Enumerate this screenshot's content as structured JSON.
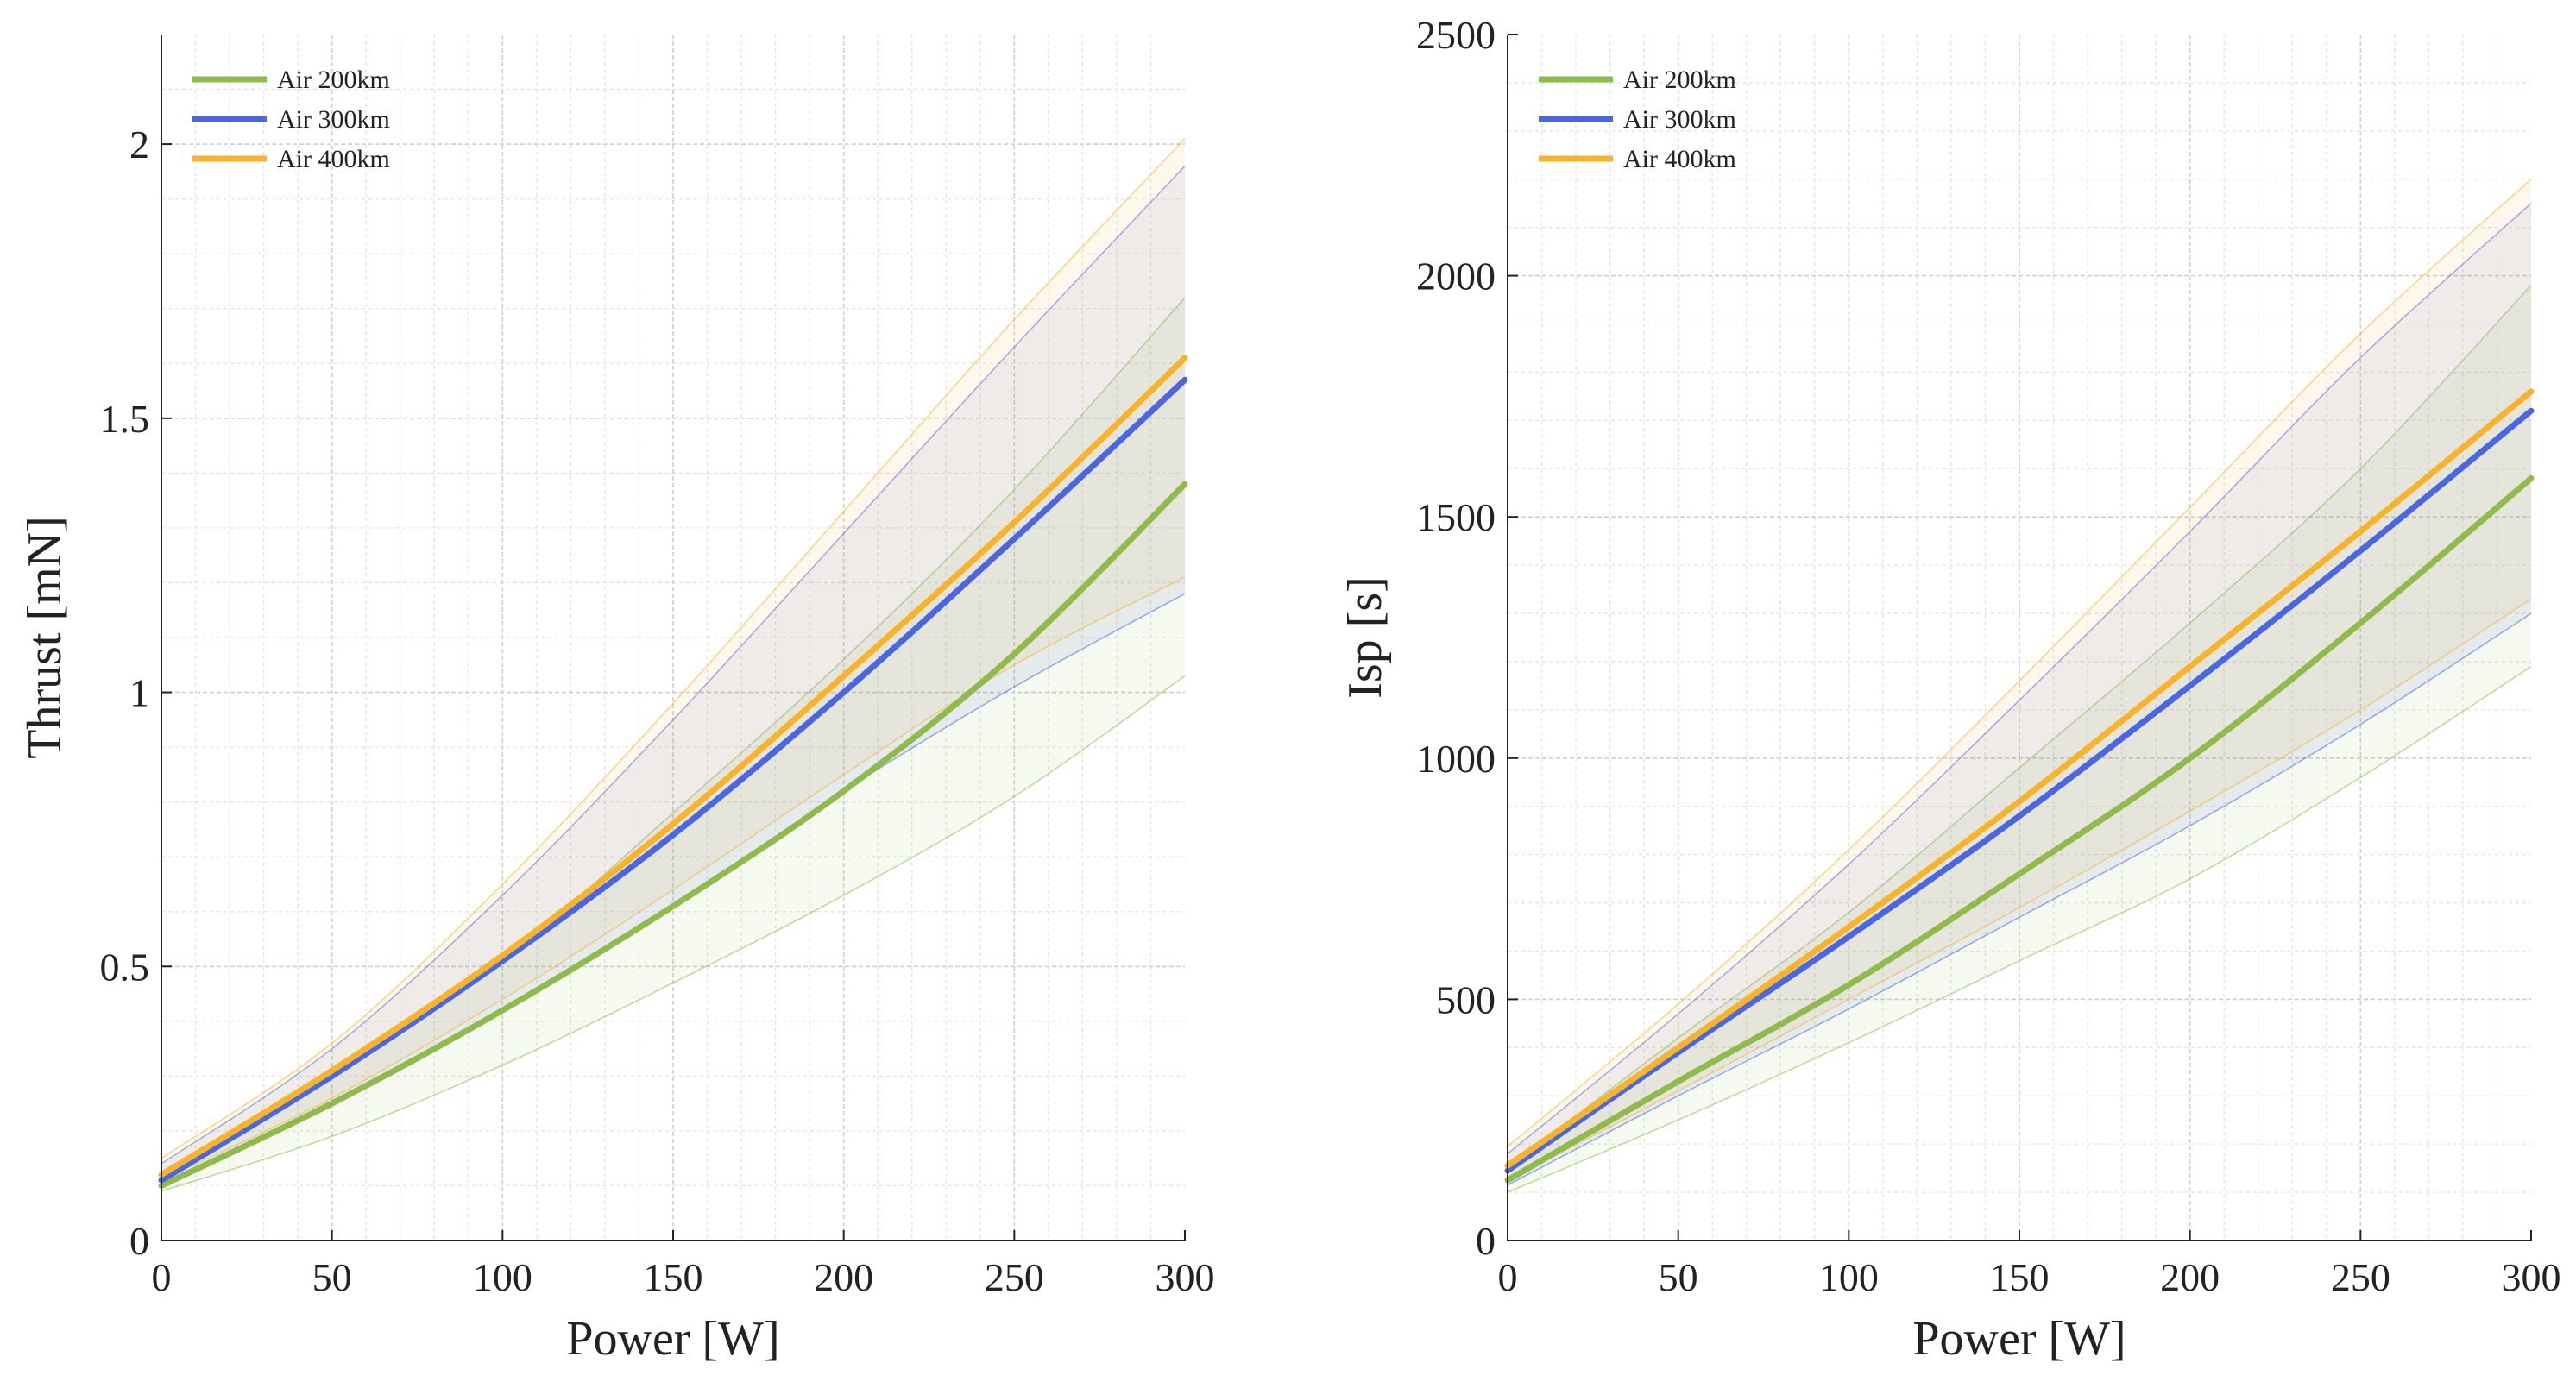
{
  "colors": {
    "air200": "#8fba4c",
    "air300": "#4a67e0",
    "air400": "#f7b32b",
    "grid_major": "#cfcfcf",
    "grid_minor": "#e3e3e3",
    "axis": "#222222"
  },
  "chart_data": [
    {
      "type": "line",
      "title": "",
      "xlabel": "Power [W]",
      "ylabel": "Thrust [mN]",
      "xlim": [
        0,
        300
      ],
      "ylim": [
        0,
        2.2
      ],
      "xticks": [
        0,
        50,
        100,
        150,
        200,
        250,
        300
      ],
      "yticks": [
        0,
        0.5,
        1,
        1.5,
        2
      ],
      "ytick_labels": [
        "0",
        "0.5",
        "1",
        "1.5",
        "2"
      ],
      "grid": true,
      "legend_position": "top-left",
      "x": [
        0,
        50,
        100,
        150,
        200,
        250,
        300
      ],
      "series": [
        {
          "name": "Air 200km",
          "color_key": "air200",
          "values": [
            0.1,
            0.25,
            0.42,
            0.61,
            0.82,
            1.07,
            1.38
          ],
          "upper": [
            0.12,
            0.3,
            0.51,
            0.78,
            1.06,
            1.37,
            1.72
          ],
          "lower": [
            0.09,
            0.19,
            0.32,
            0.47,
            0.63,
            0.81,
            1.03
          ]
        },
        {
          "name": "Air 300km",
          "color_key": "air300",
          "values": [
            0.11,
            0.3,
            0.51,
            0.74,
            1.0,
            1.28,
            1.57
          ],
          "upper": [
            0.14,
            0.35,
            0.63,
            0.95,
            1.29,
            1.63,
            1.96
          ],
          "lower": [
            0.1,
            0.25,
            0.42,
            0.61,
            0.82,
            1.01,
            1.18
          ]
        },
        {
          "name": "Air 400km",
          "color_key": "air400",
          "values": [
            0.12,
            0.31,
            0.52,
            0.76,
            1.03,
            1.31,
            1.61
          ],
          "upper": [
            0.15,
            0.36,
            0.65,
            0.98,
            1.33,
            1.68,
            2.01
          ],
          "lower": [
            0.11,
            0.26,
            0.44,
            0.64,
            0.85,
            1.05,
            1.21
          ]
        }
      ]
    },
    {
      "type": "line",
      "title": "",
      "xlabel": "Power [W]",
      "ylabel": "Isp [s]",
      "xlim": [
        0,
        300
      ],
      "ylim": [
        0,
        2500
      ],
      "xticks": [
        0,
        50,
        100,
        150,
        200,
        250,
        300
      ],
      "yticks": [
        0,
        500,
        1000,
        1500,
        2000,
        2500
      ],
      "ytick_labels": [
        "0",
        "500",
        "1000",
        "1500",
        "2000",
        "2500"
      ],
      "grid": true,
      "legend_position": "top-left",
      "x": [
        0,
        50,
        100,
        150,
        200,
        250,
        300
      ],
      "series": [
        {
          "name": "Air 200km",
          "color_key": "air200",
          "values": [
            125,
            330,
            530,
            760,
            1000,
            1280,
            1580
          ],
          "upper": [
            150,
            420,
            680,
            980,
            1280,
            1600,
            1980
          ],
          "lower": [
            100,
            250,
            410,
            580,
            750,
            960,
            1190
          ]
        },
        {
          "name": "Air 300km",
          "color_key": "air300",
          "values": [
            145,
            390,
            630,
            880,
            1150,
            1430,
            1720
          ],
          "upper": [
            180,
            470,
            780,
            1120,
            1470,
            1830,
            2150
          ],
          "lower": [
            115,
            300,
            480,
            670,
            860,
            1070,
            1300
          ]
        },
        {
          "name": "Air 400km",
          "color_key": "air400",
          "values": [
            155,
            400,
            650,
            910,
            1190,
            1470,
            1760
          ],
          "upper": [
            195,
            490,
            810,
            1160,
            1520,
            1880,
            2200
          ],
          "lower": [
            125,
            310,
            500,
            690,
            890,
            1100,
            1330
          ]
        }
      ]
    }
  ]
}
